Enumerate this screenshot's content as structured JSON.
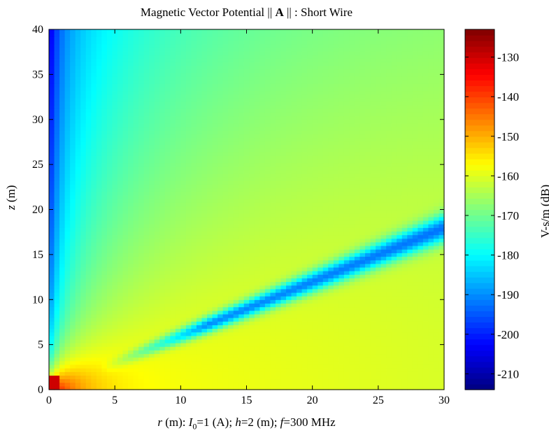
{
  "chart_data": {
    "type": "heatmap",
    "title": "Magnetic Vector Potential || A || : Short Wire",
    "title_parts": {
      "prefix": "Magnetic Vector Potential ||",
      "symbol": "A",
      "suffix": "|| : Short Wire"
    },
    "xlabel": "r (m): I0=1 (A); h=2 (m); f=300 MHz",
    "xlabel_parts": {
      "r": "r",
      "r_unit": " (m): ",
      "I": "I",
      "I_sub": "0",
      "I_rest": "=1 (A); ",
      "h": "h",
      "h_rest": "=2 (m); ",
      "f": "f",
      "f_rest": "=300 MHz"
    },
    "ylabel": "z (m)",
    "ylabel_parts": {
      "z": "z",
      "rest": " (m)"
    },
    "xlim": [
      0,
      30
    ],
    "ylim": [
      0,
      40
    ],
    "xticks": [
      0,
      5,
      10,
      15,
      20,
      25,
      30
    ],
    "yticks": [
      0,
      5,
      10,
      15,
      20,
      25,
      30,
      35,
      40
    ],
    "colorbar": {
      "label": "V-s/m (dB)",
      "range": [
        -214,
        -123
      ],
      "ticks": [
        -130,
        -140,
        -150,
        -160,
        -170,
        -180,
        -190,
        -200,
        -210
      ],
      "colormap": "jet"
    },
    "field_description": {
      "source_peak_dB": -130,
      "near_ground_level_dB": -157,
      "null_line": {
        "from": [
          5,
          3
        ],
        "to": [
          30,
          18
        ],
        "min_dB": -198
      },
      "upper_left_min_dB": -212
    }
  }
}
